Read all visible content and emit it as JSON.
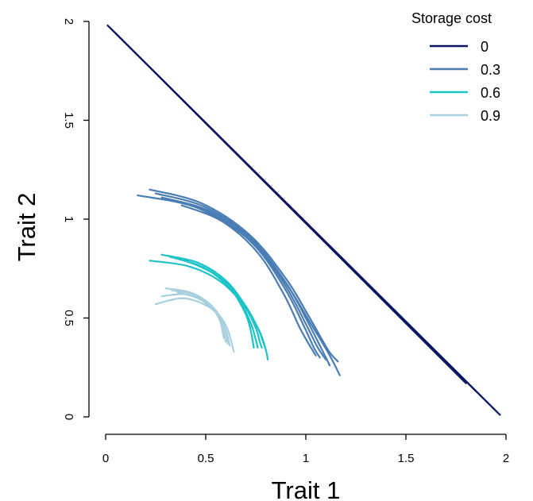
{
  "chart_data": {
    "type": "line",
    "title": "",
    "xlabel": "Trait 1",
    "ylabel": "Trait 2",
    "xlim": [
      0,
      2
    ],
    "ylim": [
      0,
      2
    ],
    "xticks": [
      "0",
      "0.5",
      "1",
      "1.5",
      "2"
    ],
    "yticks": [
      "0",
      "0.5",
      "1",
      "1.5",
      "2"
    ],
    "grid": false,
    "legend": {
      "title": "Storage cost",
      "placement": "top-right"
    },
    "series": [
      {
        "name": "0",
        "color": "#0b1561",
        "curves": [
          {
            "x": [
              0.01,
              1.97
            ],
            "y": [
              1.98,
              0.01
            ]
          },
          {
            "x": [
              0.02,
              1.85
            ],
            "y": [
              1.97,
              0.13
            ]
          },
          {
            "x": [
              0.05,
              1.8
            ],
            "y": [
              1.94,
              0.17
            ]
          },
          {
            "x": [
              0.99,
              1.96
            ],
            "y": [
              0.99,
              0.02
            ]
          }
        ]
      },
      {
        "name": "0.3",
        "color": "#4a7db3",
        "curves": [
          {
            "x": [
              0.16,
              0.45,
              0.7,
              0.89,
              1.02,
              1.12,
              1.17
            ],
            "y": [
              1.12,
              1.06,
              0.91,
              0.69,
              0.48,
              0.31,
              0.21
            ]
          },
          {
            "x": [
              0.22,
              0.48,
              0.72,
              0.9,
              1.02,
              1.11,
              1.16
            ],
            "y": [
              1.15,
              1.08,
              0.92,
              0.7,
              0.5,
              0.34,
              0.28
            ]
          },
          {
            "x": [
              0.25,
              0.5,
              0.73,
              0.9,
              1.01,
              1.08,
              1.12
            ],
            "y": [
              1.13,
              1.06,
              0.9,
              0.68,
              0.48,
              0.34,
              0.26
            ]
          },
          {
            "x": [
              0.28,
              0.52,
              0.74,
              0.9,
              1.0,
              1.06,
              1.1
            ],
            "y": [
              1.11,
              1.04,
              0.88,
              0.66,
              0.47,
              0.35,
              0.29
            ]
          },
          {
            "x": [
              0.32,
              0.55,
              0.75,
              0.9,
              0.99,
              1.04,
              1.07
            ],
            "y": [
              1.1,
              1.02,
              0.86,
              0.64,
              0.46,
              0.35,
              0.3
            ]
          },
          {
            "x": [
              0.38,
              0.58,
              0.76,
              0.89,
              0.97,
              1.02,
              1.05
            ],
            "y": [
              1.07,
              0.99,
              0.83,
              0.62,
              0.45,
              0.36,
              0.31
            ]
          }
        ]
      },
      {
        "name": "0.6",
        "color": "#1ec3c8",
        "curves": [
          {
            "x": [
              0.22,
              0.42,
              0.58,
              0.7,
              0.77,
              0.8,
              0.81
            ],
            "y": [
              0.79,
              0.76,
              0.68,
              0.55,
              0.43,
              0.34,
              0.29
            ]
          },
          {
            "x": [
              0.28,
              0.46,
              0.6,
              0.7,
              0.76,
              0.79,
              0.8
            ],
            "y": [
              0.82,
              0.78,
              0.69,
              0.56,
              0.45,
              0.37,
              0.34
            ]
          },
          {
            "x": [
              0.32,
              0.48,
              0.61,
              0.7,
              0.75,
              0.77,
              0.78
            ],
            "y": [
              0.81,
              0.76,
              0.67,
              0.55,
              0.45,
              0.38,
              0.35
            ]
          },
          {
            "x": [
              0.36,
              0.5,
              0.62,
              0.69,
              0.73,
              0.75,
              0.76
            ],
            "y": [
              0.8,
              0.75,
              0.66,
              0.55,
              0.46,
              0.39,
              0.35
            ]
          },
          {
            "x": [
              0.4,
              0.53,
              0.63,
              0.69,
              0.72,
              0.74
            ],
            "y": [
              0.79,
              0.73,
              0.64,
              0.54,
              0.46,
              0.35
            ]
          }
        ]
      },
      {
        "name": "0.9",
        "color": "#a9d0df",
        "curves": [
          {
            "x": [
              0.25,
              0.38,
              0.49,
              0.57,
              0.61,
              0.63,
              0.64
            ],
            "y": [
              0.57,
              0.6,
              0.57,
              0.51,
              0.44,
              0.37,
              0.33
            ]
          },
          {
            "x": [
              0.28,
              0.4,
              0.5,
              0.57,
              0.6,
              0.62
            ],
            "y": [
              0.61,
              0.62,
              0.58,
              0.51,
              0.44,
              0.36
            ]
          },
          {
            "x": [
              0.3,
              0.42,
              0.51,
              0.57,
              0.6,
              0.61
            ],
            "y": [
              0.65,
              0.63,
              0.58,
              0.51,
              0.43,
              0.37
            ]
          },
          {
            "x": [
              0.33,
              0.44,
              0.52,
              0.57,
              0.59,
              0.6
            ],
            "y": [
              0.64,
              0.62,
              0.57,
              0.5,
              0.43,
              0.38
            ]
          },
          {
            "x": [
              0.36,
              0.46,
              0.53,
              0.57,
              0.59
            ],
            "y": [
              0.63,
              0.6,
              0.55,
              0.49,
              0.4
            ]
          }
        ]
      }
    ]
  }
}
